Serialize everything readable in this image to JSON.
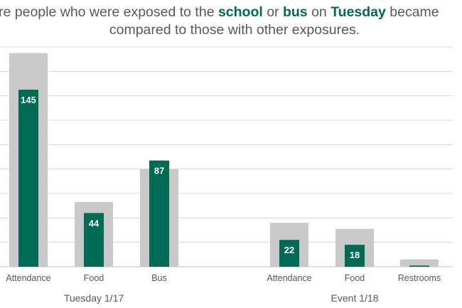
{
  "title": {
    "line1": [
      {
        "text": "re people who were exposed to the ",
        "highlight": false
      },
      {
        "text": "school",
        "highlight": true
      },
      {
        "text": " or ",
        "highlight": false
      },
      {
        "text": "bus",
        "highlight": true
      },
      {
        "text": " on ",
        "highlight": false
      },
      {
        "text": "Tuesday",
        "highlight": true
      },
      {
        "text": " became",
        "highlight": false
      }
    ],
    "line2": "compared to those with other exposures."
  },
  "chart_data": {
    "type": "bar",
    "grid": true,
    "ylim": [
      0,
      180
    ],
    "groups": [
      {
        "label": "Tuesday 1/17",
        "categories": [
          "Attendance",
          "Food",
          "Bus"
        ]
      },
      {
        "label": "Event 1/18",
        "categories": [
          "Attendance",
          "Food",
          "Restrooms"
        ]
      }
    ],
    "series": [
      {
        "values": [
          175,
          53,
          80,
          36,
          31,
          6
        ],
        "color": "#c9c9c9"
      },
      {
        "values": [
          145,
          44,
          87,
          22,
          18,
          1
        ],
        "color": "#006b54",
        "labels": [
          "145",
          "44",
          "87",
          "22",
          "18",
          ""
        ]
      }
    ],
    "colors": {
      "highlight": "#006b54",
      "background_bar": "#c9c9c9"
    }
  }
}
